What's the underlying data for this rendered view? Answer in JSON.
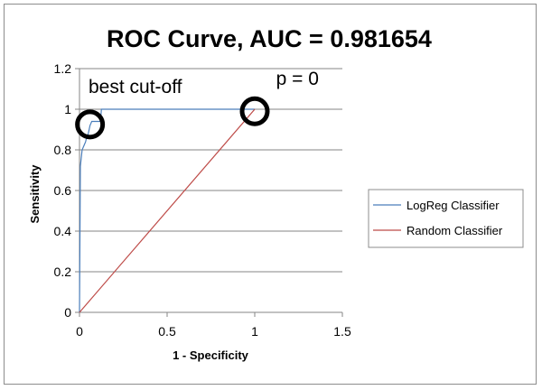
{
  "chart_data": {
    "type": "line",
    "title": "ROC Curve, AUC = 0.981654",
    "xlabel": "1 - Specificity",
    "ylabel": "Sensitivity",
    "xlim": [
      0,
      1.5
    ],
    "ylim": [
      0,
      1.2
    ],
    "x_ticks": [
      "0",
      "0.5",
      "1",
      "1.5"
    ],
    "y_ticks": [
      "0",
      "0.2",
      "0.4",
      "0.6",
      "0.8",
      "1",
      "1.2"
    ],
    "grid": "horizontal",
    "legend_position": "right",
    "series": [
      {
        "name": "LogReg Classifier",
        "color": "#4a7ebb",
        "points": [
          [
            0,
            0
          ],
          [
            0.005,
            0.72
          ],
          [
            0.01,
            0.76
          ],
          [
            0.015,
            0.8
          ],
          [
            0.025,
            0.82
          ],
          [
            0.035,
            0.84
          ],
          [
            0.04,
            0.86
          ],
          [
            0.05,
            0.88
          ],
          [
            0.055,
            0.9
          ],
          [
            0.06,
            0.92
          ],
          [
            0.07,
            0.94
          ],
          [
            0.12,
            0.94
          ],
          [
            0.125,
            1.0
          ],
          [
            1.0,
            1.0
          ]
        ]
      },
      {
        "name": "Random Classifier",
        "color": "#be4b48",
        "points": [
          [
            0,
            0
          ],
          [
            1,
            1
          ]
        ]
      }
    ],
    "annotations": [
      {
        "text": "best cut-off",
        "x": 0.0,
        "y": 1.08
      },
      {
        "text": "p = 0",
        "x": 1.07,
        "y": 1.12
      }
    ],
    "markers": [
      {
        "name": "best-cutoff",
        "x": 0.06,
        "y": 0.925
      },
      {
        "name": "p-zero",
        "x": 1.0,
        "y": 0.99
      }
    ]
  }
}
